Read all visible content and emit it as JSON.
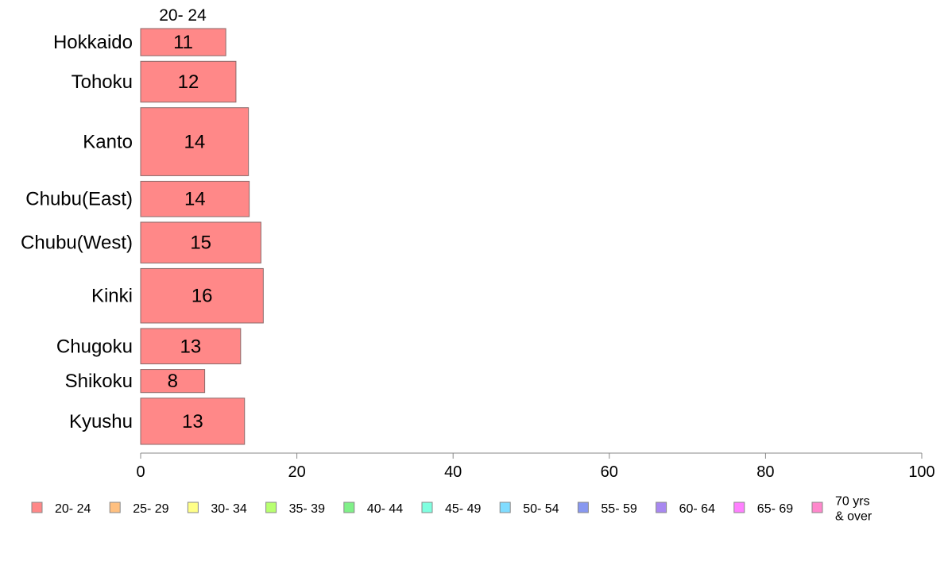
{
  "chart_data": {
    "type": "bar",
    "orientation": "horizontal",
    "series_header": "20- 24",
    "categories": [
      "Hokkaido",
      "Tohoku",
      "Kanto",
      "Chubu(East)",
      "Chubu(West)",
      "Kinki",
      "Chugoku",
      "Shikoku",
      "Kyushu"
    ],
    "category_weights": [
      2,
      3,
      5,
      2.6,
      3,
      4,
      2.6,
      1.7,
      3.4
    ],
    "series": [
      {
        "name": "20- 24",
        "color": "#ff8888",
        "values": [
          11,
          12,
          14,
          14,
          15,
          16,
          13,
          8,
          13
        ],
        "plot_values": [
          10.9,
          12.2,
          13.8,
          13.9,
          15.4,
          15.7,
          12.8,
          8.2,
          13.3
        ]
      }
    ],
    "xlim": [
      0,
      100
    ],
    "x_ticks": [
      "0",
      "20",
      "40",
      "60",
      "80",
      "100"
    ],
    "xlabel": "",
    "ylabel": "",
    "grid": false,
    "legend_position": "bottom",
    "legend": [
      {
        "label": "20- 24",
        "color": "#ff8888"
      },
      {
        "label": "25- 29",
        "color": "#ffc080"
      },
      {
        "label": "30- 34",
        "color": "#ffff88"
      },
      {
        "label": "35- 39",
        "color": "#b8ff70"
      },
      {
        "label": "40- 44",
        "color": "#80f088"
      },
      {
        "label": "45- 49",
        "color": "#80ffe0"
      },
      {
        "label": "50- 54",
        "color": "#80dcff"
      },
      {
        "label": "55- 59",
        "color": "#8898f0"
      },
      {
        "label": "60- 64",
        "color": "#a888f0"
      },
      {
        "label": "65- 69",
        "color": "#ff80ff"
      },
      {
        "label": "70 yrs\n& over",
        "color": "#ff88cc"
      }
    ]
  }
}
